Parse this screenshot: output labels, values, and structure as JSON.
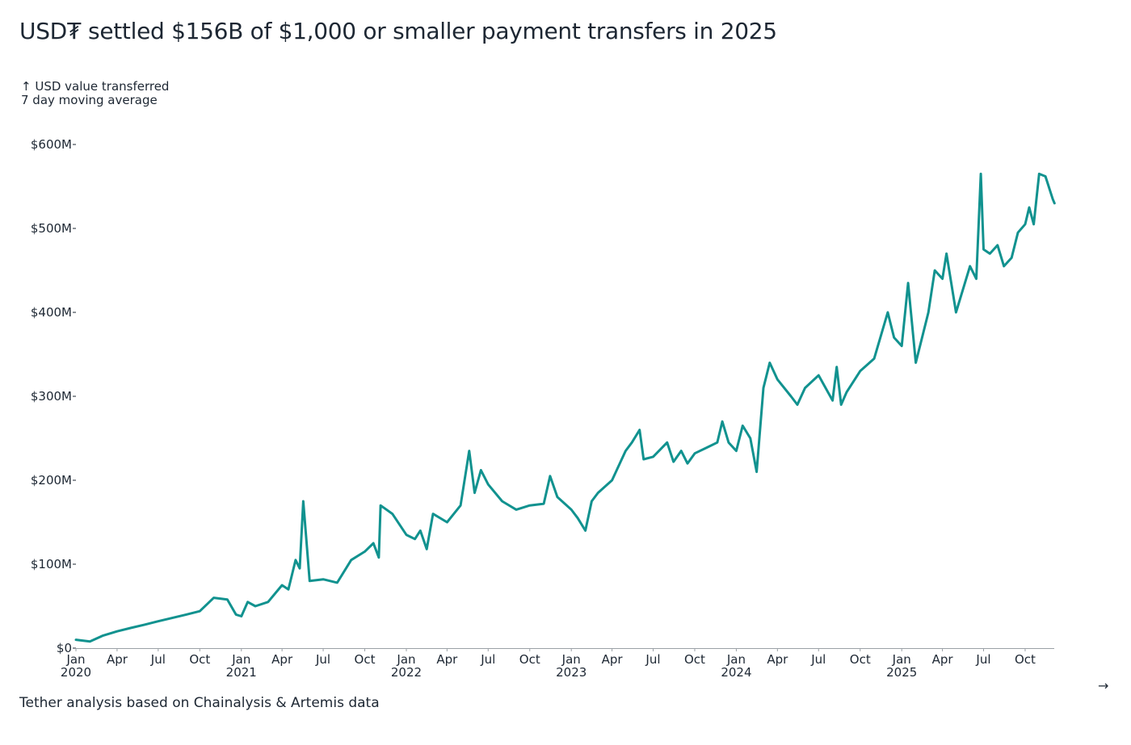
{
  "title": "USD₮ settled $156B of $1,000 or smaller payment transfers in 2025",
  "subtitle": {
    "line1": "↑ USD value transferred",
    "line2": "7 day moving average"
  },
  "footer": "Tether analysis based on Chainalysis & Artemis data",
  "nav": {
    "next_icon": "arrow-right-icon",
    "next_label": "→"
  },
  "colors": {
    "line": "#11928f",
    "text": "#1d2733",
    "axis": "#9aa0a6"
  },
  "chart_data": {
    "type": "line",
    "title": "USD₮ settled $156B of $1,000 or smaller payment transfers in 2025",
    "ylabel": "↑ USD value transferred",
    "ylabel_note": "7 day moving average",
    "ylim": [
      0,
      600
    ],
    "xlim": [
      "2020-01-01",
      "2025-12-10"
    ],
    "grid": false,
    "y_ticks": [
      {
        "value": 0,
        "label": "$0"
      },
      {
        "value": 100,
        "label": "$100M"
      },
      {
        "value": 200,
        "label": "$200M"
      },
      {
        "value": 300,
        "label": "$300M"
      },
      {
        "value": 400,
        "label": "$400M"
      },
      {
        "value": 500,
        "label": "$500M"
      },
      {
        "value": 600,
        "label": "$600M"
      }
    ],
    "x_ticks": [
      {
        "date": "2020-01-01",
        "label": "Jan",
        "year": "2020"
      },
      {
        "date": "2020-04-01",
        "label": "Apr"
      },
      {
        "date": "2020-07-01",
        "label": "Jul"
      },
      {
        "date": "2020-10-01",
        "label": "Oct"
      },
      {
        "date": "2021-01-01",
        "label": "Jan",
        "year": "2021"
      },
      {
        "date": "2021-04-01",
        "label": "Apr"
      },
      {
        "date": "2021-07-01",
        "label": "Jul"
      },
      {
        "date": "2021-10-01",
        "label": "Oct"
      },
      {
        "date": "2022-01-01",
        "label": "Jan",
        "year": "2022"
      },
      {
        "date": "2022-04-01",
        "label": "Apr"
      },
      {
        "date": "2022-07-01",
        "label": "Jul"
      },
      {
        "date": "2022-10-01",
        "label": "Oct"
      },
      {
        "date": "2023-01-01",
        "label": "Jan",
        "year": "2023"
      },
      {
        "date": "2023-04-01",
        "label": "Apr"
      },
      {
        "date": "2023-07-01",
        "label": "Jul"
      },
      {
        "date": "2023-10-01",
        "label": "Oct"
      },
      {
        "date": "2024-01-01",
        "label": "Jan",
        "year": "2024"
      },
      {
        "date": "2024-04-01",
        "label": "Apr"
      },
      {
        "date": "2024-07-01",
        "label": "Jul"
      },
      {
        "date": "2024-10-01",
        "label": "Oct"
      },
      {
        "date": "2025-01-01",
        "label": "Jan",
        "year": "2025"
      },
      {
        "date": "2025-04-01",
        "label": "Apr"
      },
      {
        "date": "2025-07-01",
        "label": "Jul"
      },
      {
        "date": "2025-10-01",
        "label": "Oct"
      }
    ],
    "series": [
      {
        "x": [
          "2020-01-01",
          "2020-02-01",
          "2020-03-01",
          "2020-04-01",
          "2020-05-01",
          "2020-06-01",
          "2020-07-01",
          "2020-08-01",
          "2020-09-01",
          "2020-10-01",
          "2020-11-01",
          "2020-12-01",
          "2020-12-20",
          "2021-01-01",
          "2021-01-15",
          "2021-02-01",
          "2021-03-01",
          "2021-04-01",
          "2021-04-15",
          "2021-05-01",
          "2021-05-10",
          "2021-05-18",
          "2021-06-01",
          "2021-07-01",
          "2021-08-01",
          "2021-09-01",
          "2021-10-01",
          "2021-10-20",
          "2021-11-01",
          "2021-11-05",
          "2021-12-01",
          "2022-01-01",
          "2022-01-20",
          "2022-02-01",
          "2022-02-15",
          "2022-03-01",
          "2022-04-01",
          "2022-05-01",
          "2022-05-20",
          "2022-06-01",
          "2022-06-15",
          "2022-07-01",
          "2022-08-01",
          "2022-09-01",
          "2022-10-01",
          "2022-11-01",
          "2022-11-15",
          "2022-12-01",
          "2023-01-01",
          "2023-01-15",
          "2023-02-01",
          "2023-02-15",
          "2023-03-01",
          "2023-04-01",
          "2023-05-01",
          "2023-05-15",
          "2023-06-01",
          "2023-06-10",
          "2023-07-01",
          "2023-08-01",
          "2023-08-15",
          "2023-09-01",
          "2023-09-15",
          "2023-10-01",
          "2023-11-01",
          "2023-11-20",
          "2023-12-01",
          "2023-12-15",
          "2024-01-01",
          "2024-01-15",
          "2024-02-01",
          "2024-02-15",
          "2024-03-01",
          "2024-03-15",
          "2024-04-01",
          "2024-05-01",
          "2024-05-15",
          "2024-06-01",
          "2024-07-01",
          "2024-08-01",
          "2024-08-10",
          "2024-08-20",
          "2024-09-01",
          "2024-10-01",
          "2024-11-01",
          "2024-12-01",
          "2024-12-15",
          "2025-01-01",
          "2025-01-15",
          "2025-02-01",
          "2025-03-01",
          "2025-03-15",
          "2025-04-01",
          "2025-04-10",
          "2025-05-01",
          "2025-06-01",
          "2025-06-15",
          "2025-06-25",
          "2025-07-01",
          "2025-07-15",
          "2025-08-01",
          "2025-08-15",
          "2025-09-01",
          "2025-09-15",
          "2025-10-01",
          "2025-10-10",
          "2025-10-20",
          "2025-11-01",
          "2025-11-15",
          "2025-12-01",
          "2025-12-05"
        ],
        "y": [
          10,
          8,
          15,
          20,
          24,
          28,
          32,
          36,
          40,
          44,
          60,
          58,
          40,
          38,
          55,
          50,
          55,
          75,
          70,
          105,
          95,
          175,
          80,
          82,
          78,
          105,
          115,
          125,
          108,
          170,
          160,
          135,
          130,
          140,
          118,
          160,
          150,
          170,
          235,
          185,
          212,
          195,
          175,
          165,
          170,
          172,
          205,
          180,
          165,
          155,
          140,
          175,
          185,
          200,
          235,
          245,
          260,
          225,
          228,
          245,
          222,
          235,
          220,
          232,
          240,
          245,
          270,
          245,
          235,
          265,
          250,
          210,
          310,
          340,
          320,
          300,
          290,
          310,
          325,
          295,
          335,
          290,
          305,
          330,
          345,
          400,
          370,
          360,
          435,
          340,
          400,
          450,
          440,
          470,
          400,
          455,
          440,
          565,
          475,
          470,
          480,
          455,
          465,
          495,
          505,
          525,
          505,
          565,
          562,
          535,
          530
        ]
      }
    ]
  }
}
